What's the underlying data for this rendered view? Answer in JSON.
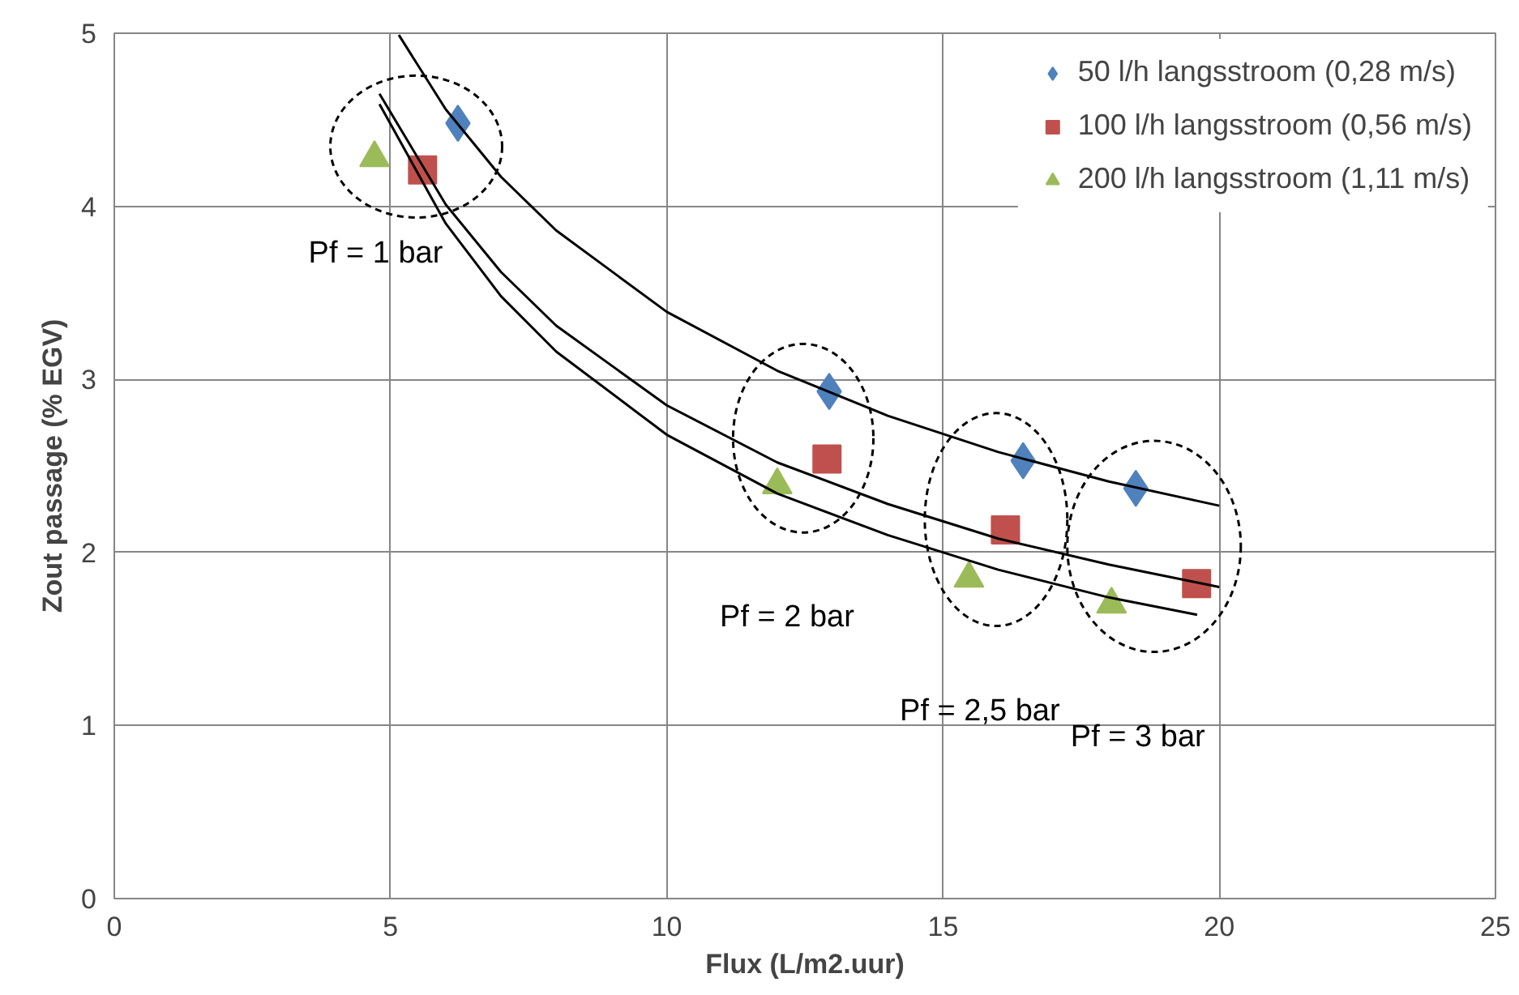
{
  "chart_data": {
    "type": "scatter",
    "xlabel": "Flux (L/m2.uur)",
    "ylabel": "Zout passage (% EGV)",
    "xlim": [
      0,
      25
    ],
    "ylim": [
      0,
      5
    ],
    "xticks": [
      0,
      5,
      10,
      15,
      20,
      25
    ],
    "yticks": [
      0,
      1,
      2,
      3,
      4,
      5
    ],
    "grid": true,
    "legend": "top right",
    "series": [
      {
        "name": "50 l/h langsstroom (0,28 m/s)",
        "color": "#4f81bd",
        "marker": "diamond",
        "x": [
          6.22,
          12.94,
          16.45,
          18.49
        ],
        "values": [
          4.48,
          2.93,
          2.53,
          2.37
        ]
      },
      {
        "name": "100 l/h langsstroom (0,56 m/s)",
        "color": "#c0504d",
        "marker": "square",
        "x": [
          5.58,
          12.9,
          16.13,
          19.59
        ],
        "values": [
          4.21,
          2.54,
          2.13,
          1.82
        ]
      },
      {
        "name": "200 l/h langsstroom (1,11 m/s)",
        "color": "#9bbb59",
        "marker": "triangle",
        "x": [
          4.71,
          12.0,
          15.47,
          18.05
        ],
        "values": [
          4.28,
          2.39,
          1.85,
          1.7
        ]
      },
      {
        "type": "line",
        "color": "#000000",
        "x": [
          5.15,
          6,
          7,
          8,
          10,
          12,
          14,
          16,
          18,
          20
        ],
        "values": [
          4.99,
          4.56,
          4.17,
          3.86,
          3.39,
          3.05,
          2.79,
          2.58,
          2.41,
          2.27
        ]
      },
      {
        "type": "line",
        "color": "#000000",
        "x": [
          4.8,
          6,
          7,
          8,
          10,
          12,
          14,
          16,
          18,
          20
        ],
        "values": [
          4.65,
          4.01,
          3.62,
          3.31,
          2.85,
          2.52,
          2.28,
          2.08,
          1.93,
          1.8
        ]
      },
      {
        "type": "line",
        "color": "#000000",
        "x": [
          4.8,
          6,
          7,
          8,
          10,
          12,
          14,
          16,
          18,
          19.6
        ],
        "values": [
          4.59,
          3.9,
          3.48,
          3.16,
          2.68,
          2.34,
          2.1,
          1.9,
          1.74,
          1.64
        ]
      }
    ],
    "annotations": [
      "Pf = 1 bar",
      "Pf = 2 bar",
      "Pf = 2,5 bar",
      "Pf = 3 bar"
    ]
  }
}
